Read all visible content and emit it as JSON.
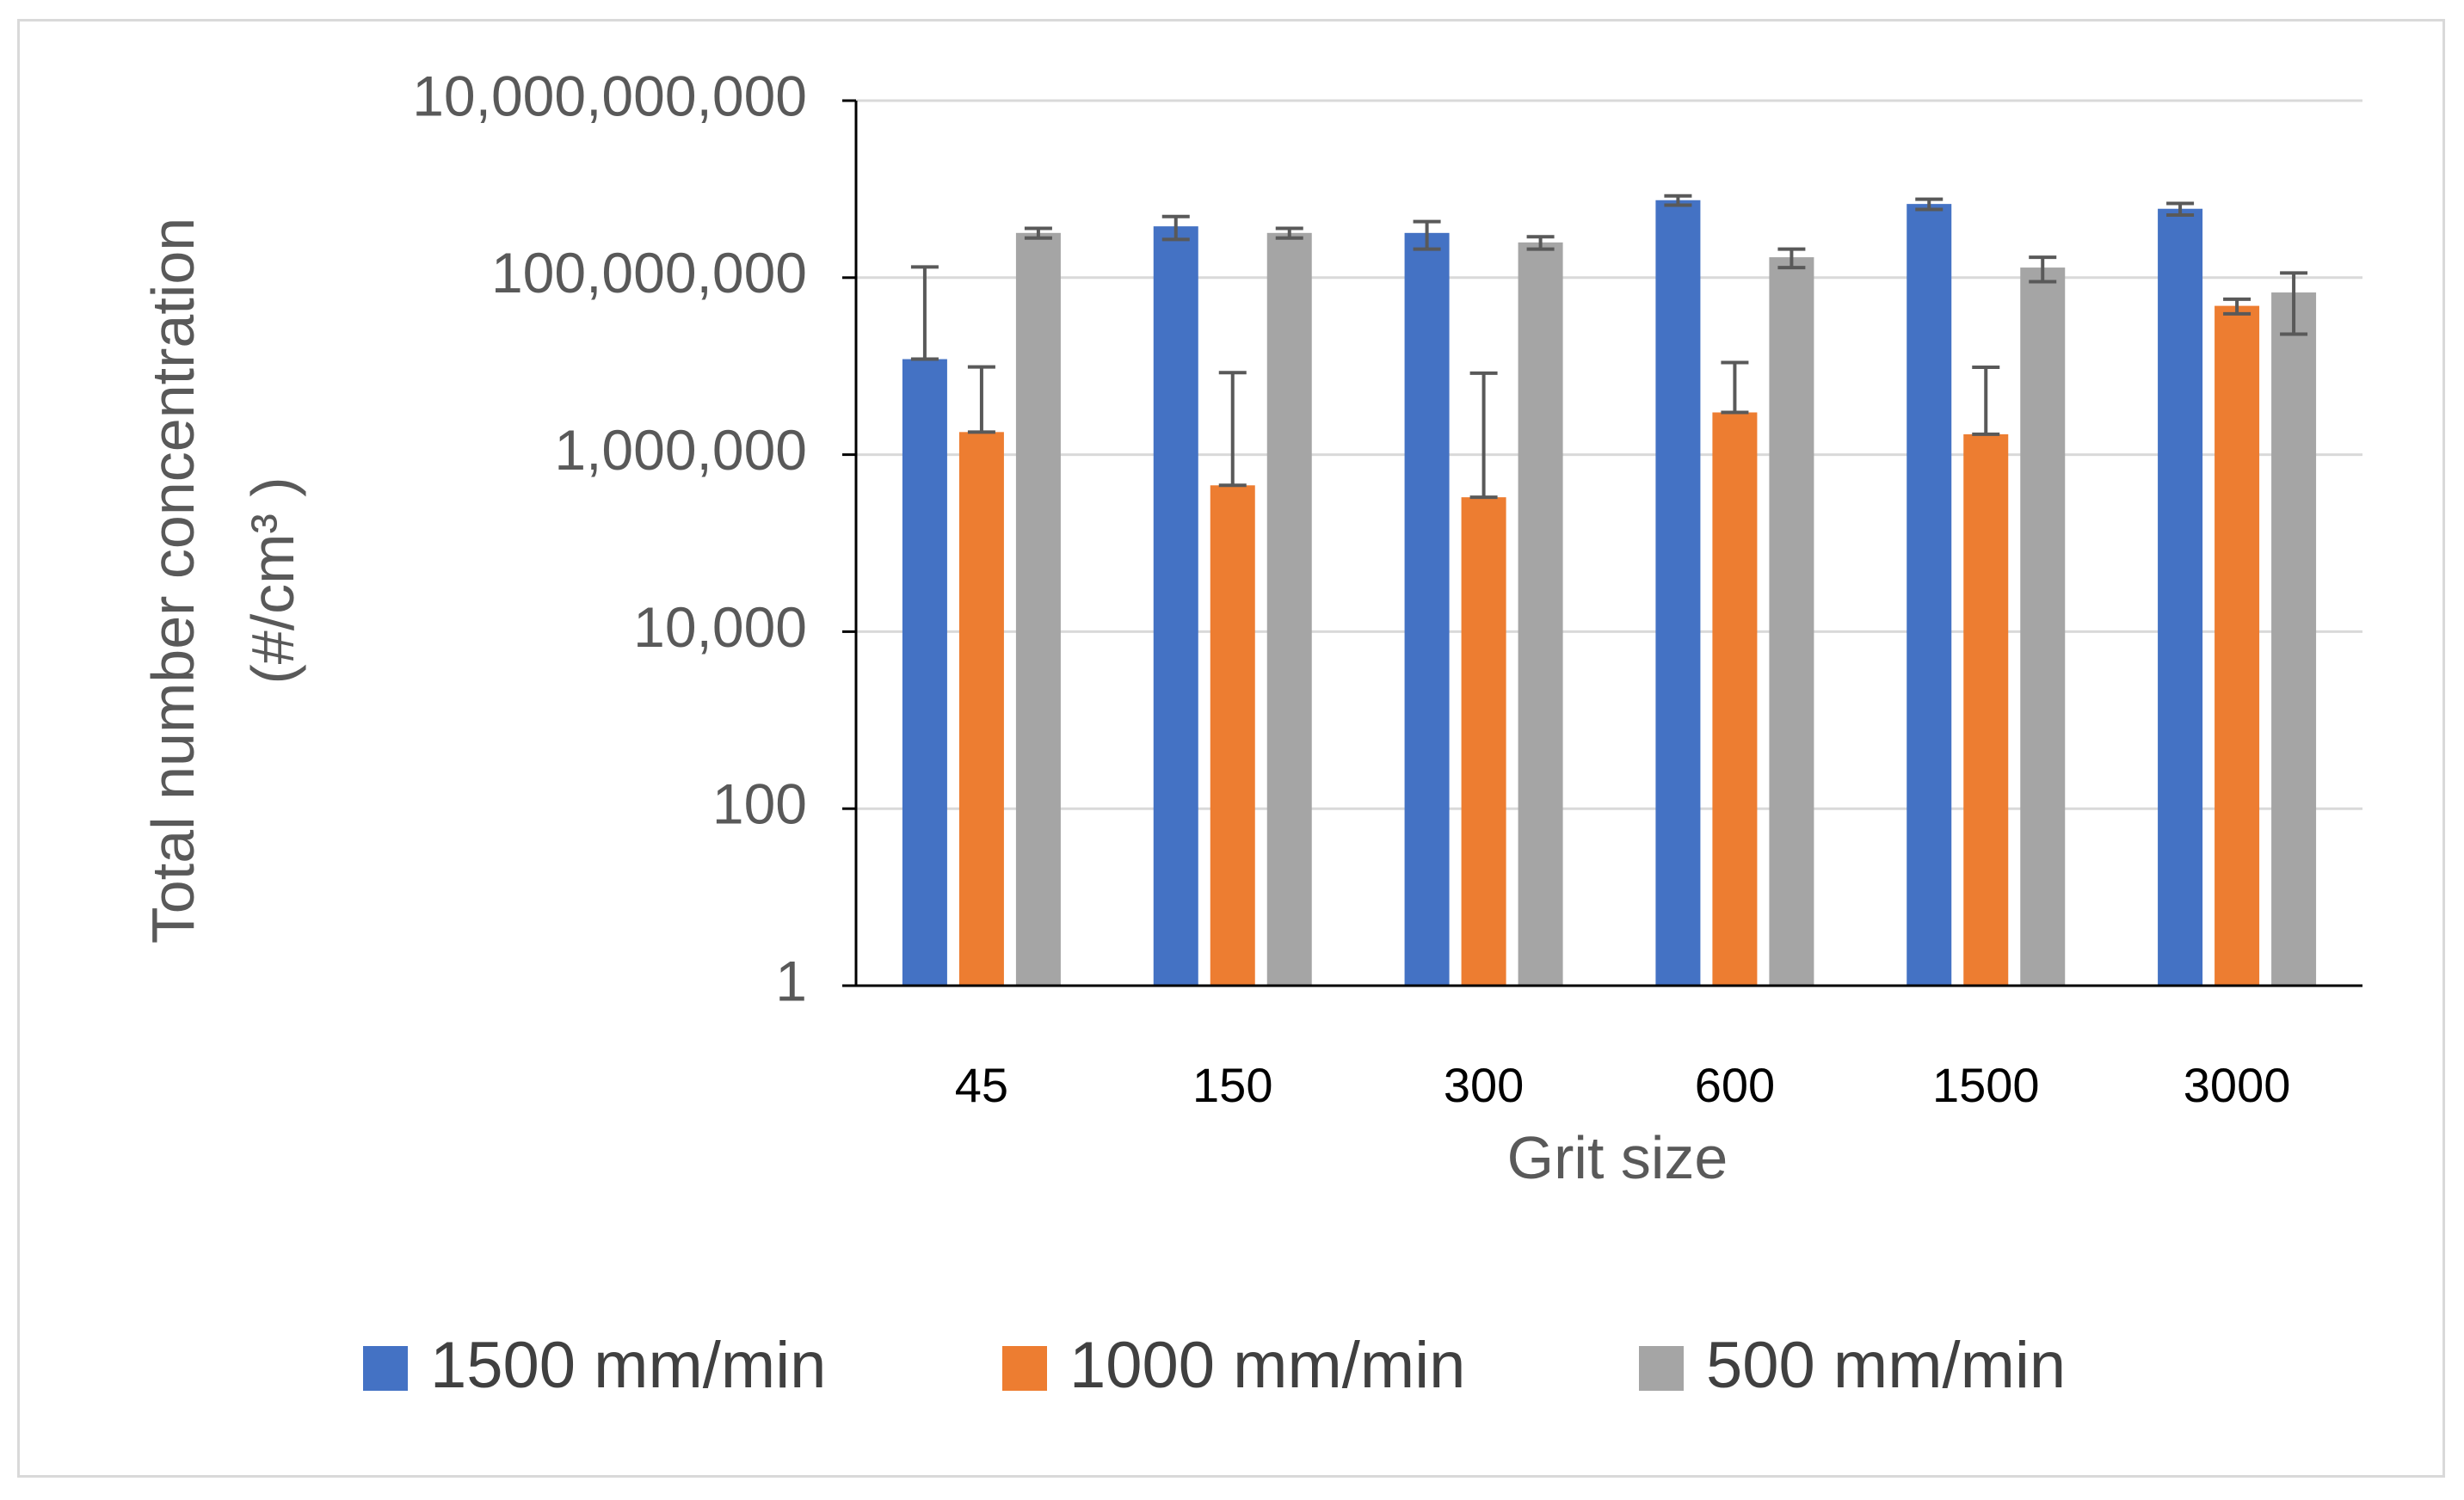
{
  "chart_data": {
    "type": "bar",
    "title": "",
    "xlabel": "Grit size",
    "ylabel_line1": "Total number concentration",
    "ylabel_line2": "(#/cm³ )",
    "yscale": "log10",
    "ylim": [
      1,
      10000000000
    ],
    "y_tick_values": [
      1,
      100,
      10000,
      1000000,
      100000000,
      10000000000
    ],
    "y_tick_labels": [
      "1",
      "100",
      "10,000",
      "1,000,000",
      "100,000,000",
      "10,000,000,000"
    ],
    "categories": [
      "45",
      "150",
      "300",
      "600",
      "1500",
      "3000"
    ],
    "series": [
      {
        "name": "1500 mm/min",
        "color": "#4472c4",
        "values": [
          12000000,
          380000000,
          320000000,
          750000000,
          680000000,
          600000000
        ],
        "errors": [
          120000000,
          110000000,
          110000000,
          90000000,
          90000000,
          90000000
        ]
      },
      {
        "name": "1000 mm/min",
        "color": "#ed7d31",
        "values": [
          1800000,
          450000,
          330000,
          3000000,
          1700000,
          48000000
        ],
        "errors": [
          8000000,
          8000000,
          8000000,
          8000000,
          8000000,
          9000000
        ]
      },
      {
        "name": "500 mm/min",
        "color": "#a5a5a5",
        "values": [
          320000000,
          320000000,
          250000000,
          170000000,
          130000000,
          68000000
        ],
        "errors": [
          40000000,
          40000000,
          40000000,
          40000000,
          40000000,
          45000000
        ]
      }
    ],
    "legend_position": "bottom",
    "grid": true
  }
}
